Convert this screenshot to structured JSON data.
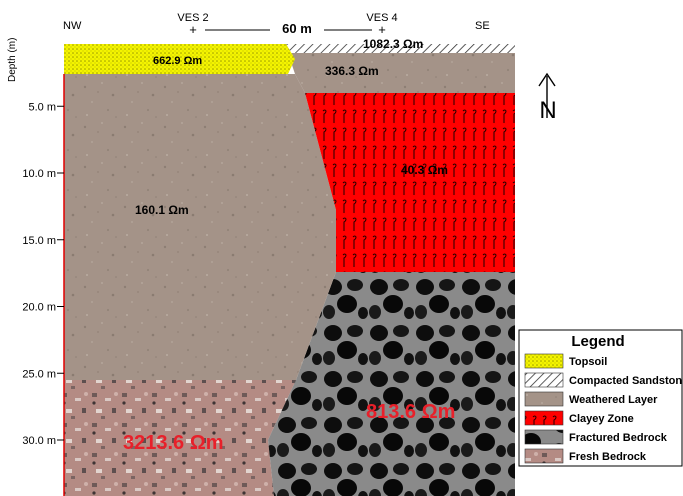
{
  "header": {
    "nw": "NW",
    "se": "SE",
    "ves_left": "VES 2",
    "ves_right": "VES 4",
    "spacing": "60 m"
  },
  "axis": {
    "title": "Depth (m)",
    "ticks": [
      {
        "value": 5,
        "label": "5.0 m"
      },
      {
        "value": 10,
        "label": "10.0 m"
      },
      {
        "value": 15,
        "label": "15.0 m"
      },
      {
        "value": 20,
        "label": "20.0 m"
      },
      {
        "value": 25,
        "label": "25.0 m"
      },
      {
        "value": 30,
        "label": "30.0 m"
      }
    ]
  },
  "layers": {
    "topsoil": "662.9 Ωm",
    "compacted": "1082.3 Ωm",
    "weathered_right": "336.3 Ωm",
    "clayey": "40.3 Ωm",
    "weathered_left": "160.1 Ωm",
    "fractured": "813.6 Ωm",
    "fresh": "3213.6 Ωm"
  },
  "north_symbol": "N",
  "legend": {
    "title": "Legend",
    "items": [
      {
        "id": "topsoil",
        "label": "Topsoil"
      },
      {
        "id": "compacted",
        "label": "Compacted Sandston"
      },
      {
        "id": "weathered",
        "label": "Weathered Layer"
      },
      {
        "id": "clayey",
        "label": "Clayey Zone"
      },
      {
        "id": "fractured",
        "label": "Fractured Bedrock"
      },
      {
        "id": "fresh",
        "label": "Fresh Bedrock"
      }
    ]
  },
  "colors": {
    "topsoil": "#f2f200",
    "clayey": "#ff0000",
    "weathered": "#a39288",
    "fresh": "#b58b86",
    "fractured": "#2d2d2d",
    "resistivity_red": "#e8202a"
  }
}
